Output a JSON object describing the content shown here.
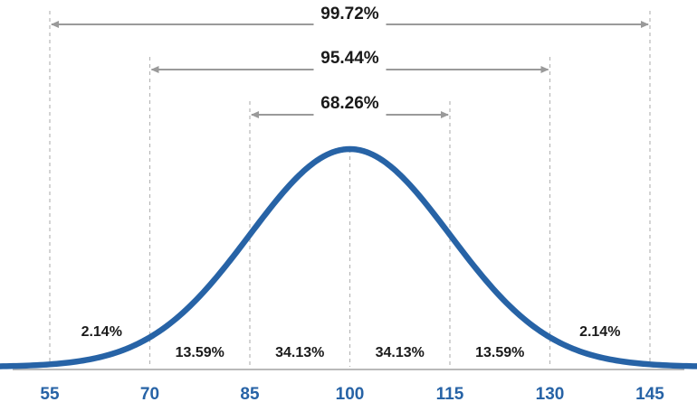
{
  "chart_data": {
    "type": "line",
    "distribution": "normal",
    "mean": 100,
    "sd": 15,
    "xlim": [
      48,
      153
    ],
    "x_ticks": [
      "55",
      "70",
      "85",
      "100",
      "115",
      "130",
      "145"
    ],
    "tick_values": [
      55,
      70,
      85,
      100,
      115,
      130,
      145
    ],
    "region_labels": [
      {
        "text": "2.14%",
        "x": 62.5
      },
      {
        "text": "13.59%",
        "x": 77.5
      },
      {
        "text": "34.13%",
        "x": 92.5
      },
      {
        "text": "34.13%",
        "x": 107.5
      },
      {
        "text": "13.59%",
        "x": 122.5
      },
      {
        "text": "2.14%",
        "x": 137.5
      }
    ],
    "spans": [
      {
        "label": "99.72%",
        "from": 55,
        "to": 145
      },
      {
        "label": "95.44%",
        "from": 70,
        "to": 130
      },
      {
        "label": "68.26%",
        "from": 85,
        "to": 115
      }
    ],
    "grid": "vertical dashed lines at tick values",
    "colors": {
      "curve": "#2763a6",
      "tick_labels": "#2763a6",
      "baseline": "#b9b9b9",
      "gridlines": "#b8b8b8",
      "arrows": "#9a9a9a",
      "text": "#1a1a1a"
    }
  }
}
